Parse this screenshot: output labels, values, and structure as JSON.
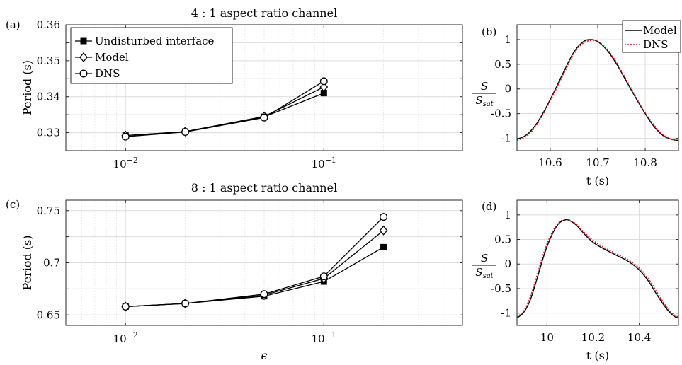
{
  "chart_data": [
    {
      "id": "a",
      "panel_label": "(a)",
      "type": "line",
      "title": "4 : 1 aspect ratio channel",
      "xscale": "log",
      "xlim": [
        0.005,
        0.5
      ],
      "ylim": [
        0.325,
        0.36
      ],
      "xticks": [
        0.01,
        0.1
      ],
      "xtick_labels": [
        {
          "base": "10",
          "exp": "−2"
        },
        {
          "base": "10",
          "exp": "−1"
        }
      ],
      "yticks": [
        0.33,
        0.335,
        0.34,
        0.345,
        0.35,
        0.355,
        0.36
      ],
      "ytick_labels": [
        "0.33",
        "",
        "0.34",
        "",
        "0.35",
        "",
        "0.36"
      ],
      "ylabel": "Period (s)",
      "xlabel": "",
      "grid": true,
      "legend": "top-left",
      "series": [
        {
          "name": "Undisturbed interface",
          "marker": "square-filled",
          "x": [
            0.01,
            0.02,
            0.05,
            0.1
          ],
          "y": [
            0.3292,
            0.3303,
            0.3344,
            0.341
          ]
        },
        {
          "name": "Model",
          "marker": "diamond-open",
          "x": [
            0.01,
            0.02,
            0.05,
            0.1
          ],
          "y": [
            0.3292,
            0.3303,
            0.3345,
            0.3427
          ]
        },
        {
          "name": "DNS",
          "marker": "circle-open",
          "x": [
            0.01,
            0.02,
            0.05,
            0.1
          ],
          "y": [
            0.3289,
            0.3302,
            0.3342,
            0.3443
          ]
        }
      ]
    },
    {
      "id": "b",
      "panel_label": "(b)",
      "type": "line",
      "title": "",
      "xlim": [
        10.53,
        10.87
      ],
      "ylim": [
        -1.25,
        1.3
      ],
      "xticks": [
        10.6,
        10.7,
        10.8
      ],
      "xtick_labels": [
        "10.6",
        "10.7",
        "10.8"
      ],
      "yticks": [
        -1,
        -0.5,
        0,
        0.5,
        1
      ],
      "ytick_labels": [
        "-1",
        "-0.5",
        "0",
        "0.5",
        "1"
      ],
      "xlabel": "t (s)",
      "ylabel_num": "S",
      "ylabel_den_base": "S",
      "ylabel_den_sub": "sat",
      "grid": true,
      "legend": "top-right",
      "series": [
        {
          "name": "Model",
          "color": "#000000",
          "style": "solid",
          "x": [
            10.53,
            10.55,
            10.57,
            10.59,
            10.61,
            10.63,
            10.65,
            10.67,
            10.685,
            10.7,
            10.72,
            10.74,
            10.76,
            10.78,
            10.8,
            10.82,
            10.84,
            10.86,
            10.87
          ],
          "y": [
            -1.02,
            -0.93,
            -0.72,
            -0.4,
            -0.02,
            0.38,
            0.75,
            0.96,
            1.0,
            0.96,
            0.78,
            0.5,
            0.16,
            -0.18,
            -0.5,
            -0.78,
            -0.96,
            -1.03,
            -1.04
          ]
        },
        {
          "name": "DNS",
          "color": "#d7191c",
          "style": "dotted",
          "x": [
            10.53,
            10.55,
            10.57,
            10.59,
            10.61,
            10.63,
            10.65,
            10.67,
            10.69,
            10.71,
            10.73,
            10.75,
            10.77,
            10.79,
            10.81,
            10.83,
            10.85,
            10.87
          ],
          "y": [
            -1.04,
            -0.96,
            -0.75,
            -0.43,
            -0.05,
            0.34,
            0.71,
            0.93,
            0.98,
            0.9,
            0.68,
            0.36,
            0.02,
            -0.32,
            -0.62,
            -0.86,
            -1.0,
            -1.05
          ]
        }
      ]
    },
    {
      "id": "c",
      "panel_label": "(c)",
      "type": "line",
      "title": "8 : 1 aspect ratio channel",
      "xscale": "log",
      "xlim": [
        0.005,
        0.5
      ],
      "ylim": [
        0.64,
        0.76
      ],
      "xticks": [
        0.01,
        0.1
      ],
      "xtick_labels": [
        {
          "base": "10",
          "exp": "−2"
        },
        {
          "base": "10",
          "exp": "−1"
        }
      ],
      "yticks": [
        0.65,
        0.675,
        0.7,
        0.725,
        0.75
      ],
      "ytick_labels": [
        "0.65",
        "",
        "0.7",
        "",
        "0.75"
      ],
      "ylabel": "Period (s)",
      "xlabel": "ϵ",
      "grid": true,
      "series": [
        {
          "name": "Undisturbed interface",
          "marker": "square-filled",
          "x": [
            0.01,
            0.02,
            0.05,
            0.1,
            0.2
          ],
          "y": [
            0.658,
            0.661,
            0.668,
            0.682,
            0.715
          ]
        },
        {
          "name": "Model",
          "marker": "diamond-open",
          "x": [
            0.01,
            0.02,
            0.05,
            0.1,
            0.2
          ],
          "y": [
            0.658,
            0.661,
            0.669,
            0.685,
            0.731
          ]
        },
        {
          "name": "DNS",
          "marker": "circle-open",
          "x": [
            0.01,
            0.02,
            0.05,
            0.1,
            0.2
          ],
          "y": [
            0.658,
            0.661,
            0.67,
            0.687,
            0.744
          ]
        }
      ]
    },
    {
      "id": "d",
      "panel_label": "(d)",
      "type": "line",
      "title": "",
      "xlim": [
        9.87,
        10.57
      ],
      "ylim": [
        -1.25,
        1.3
      ],
      "xticks": [
        10.0,
        10.2,
        10.4
      ],
      "xtick_labels": [
        "10",
        "10.2",
        "10.4"
      ],
      "yticks": [
        -1,
        -0.5,
        0,
        0.5,
        1
      ],
      "ytick_labels": [
        "-1",
        "-0.5",
        "0",
        "0.5",
        "1"
      ],
      "xlabel": "t (s)",
      "ylabel_num": "S",
      "ylabel_den_base": "S",
      "ylabel_den_sub": "sat",
      "grid": true,
      "series": [
        {
          "name": "Model",
          "color": "#000000",
          "style": "solid",
          "x": [
            9.87,
            9.9,
            9.93,
            9.96,
            9.99,
            10.02,
            10.05,
            10.08,
            10.1,
            10.13,
            10.16,
            10.2,
            10.25,
            10.3,
            10.35,
            10.4,
            10.44,
            10.48,
            10.52,
            10.55,
            10.57
          ],
          "y": [
            -1.1,
            -0.98,
            -0.7,
            -0.25,
            0.22,
            0.58,
            0.82,
            0.9,
            0.88,
            0.78,
            0.62,
            0.44,
            0.3,
            0.18,
            0.06,
            -0.12,
            -0.35,
            -0.65,
            -0.92,
            -1.06,
            -1.1
          ]
        },
        {
          "name": "DNS",
          "color": "#d7191c",
          "style": "dotted",
          "x": [
            9.87,
            9.9,
            9.93,
            9.96,
            9.99,
            10.02,
            10.05,
            10.08,
            10.1,
            10.13,
            10.16,
            10.2,
            10.25,
            10.3,
            10.35,
            10.4,
            10.44,
            10.48,
            10.52,
            10.55,
            10.57
          ],
          "y": [
            -1.08,
            -0.95,
            -0.64,
            -0.18,
            0.28,
            0.62,
            0.84,
            0.91,
            0.89,
            0.8,
            0.65,
            0.48,
            0.33,
            0.21,
            0.09,
            -0.08,
            -0.3,
            -0.6,
            -0.88,
            -1.03,
            -1.08
          ]
        }
      ]
    }
  ]
}
